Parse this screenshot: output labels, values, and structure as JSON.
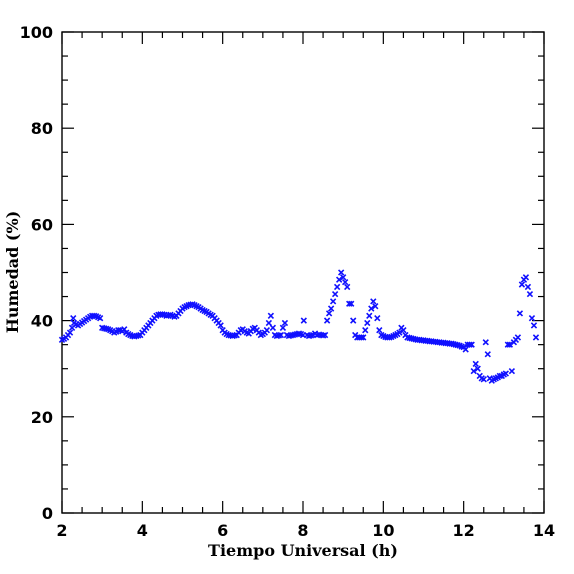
{
  "chart_data": {
    "type": "scatter",
    "xlabel": "Tiempo Universal (h)",
    "ylabel": "Humedad (%)",
    "xlim": [
      2,
      14
    ],
    "ylim": [
      0,
      100
    ],
    "x_ticks": [
      "2",
      "4",
      "6",
      "8",
      "10",
      "12",
      "14"
    ],
    "y_ticks": [
      "0",
      "20",
      "40",
      "60",
      "80",
      "100"
    ],
    "marker": "x",
    "marker_color": "#1010ff",
    "series": [
      {
        "points": [
          [
            2.0,
            36.0
          ],
          [
            2.05,
            36.2
          ],
          [
            2.1,
            36.5
          ],
          [
            2.15,
            37.0
          ],
          [
            2.2,
            37.5
          ],
          [
            2.25,
            38.5
          ],
          [
            2.28,
            40.5
          ],
          [
            2.3,
            39.5
          ],
          [
            2.35,
            39.2
          ],
          [
            2.4,
            39.0
          ],
          [
            2.45,
            39.3
          ],
          [
            2.5,
            39.6
          ],
          [
            2.55,
            39.9
          ],
          [
            2.6,
            40.2
          ],
          [
            2.65,
            40.5
          ],
          [
            2.7,
            40.8
          ],
          [
            2.75,
            41.0
          ],
          [
            2.8,
            41.0
          ],
          [
            2.85,
            40.9
          ],
          [
            2.9,
            40.7
          ],
          [
            2.95,
            40.5
          ],
          [
            3.0,
            38.5
          ],
          [
            3.05,
            38.4
          ],
          [
            3.1,
            38.3
          ],
          [
            3.15,
            38.2
          ],
          [
            3.2,
            38.0
          ],
          [
            3.25,
            37.8
          ],
          [
            3.3,
            37.5
          ],
          [
            3.35,
            37.7
          ],
          [
            3.4,
            38.0
          ],
          [
            3.45,
            38.0
          ],
          [
            3.5,
            37.8
          ],
          [
            3.55,
            38.2
          ],
          [
            3.6,
            37.5
          ],
          [
            3.65,
            37.2
          ],
          [
            3.7,
            37.0
          ],
          [
            3.75,
            36.8
          ],
          [
            3.8,
            36.7
          ],
          [
            3.85,
            36.8
          ],
          [
            3.9,
            36.9
          ],
          [
            3.95,
            37.0
          ],
          [
            4.0,
            37.5
          ],
          [
            4.05,
            38.0
          ],
          [
            4.1,
            38.5
          ],
          [
            4.15,
            39.0
          ],
          [
            4.2,
            39.5
          ],
          [
            4.25,
            40.0
          ],
          [
            4.3,
            40.5
          ],
          [
            4.35,
            41.0
          ],
          [
            4.4,
            41.2
          ],
          [
            4.45,
            41.3
          ],
          [
            4.5,
            41.3
          ],
          [
            4.55,
            41.2
          ],
          [
            4.6,
            41.0
          ],
          [
            4.65,
            41.1
          ],
          [
            4.7,
            41.2
          ],
          [
            4.75,
            41.0
          ],
          [
            4.8,
            40.8
          ],
          [
            4.85,
            41.0
          ],
          [
            4.9,
            41.5
          ],
          [
            4.95,
            42.0
          ],
          [
            5.0,
            42.5
          ],
          [
            5.05,
            42.8
          ],
          [
            5.1,
            43.0
          ],
          [
            5.15,
            43.2
          ],
          [
            5.2,
            43.3
          ],
          [
            5.25,
            43.4
          ],
          [
            5.3,
            43.2
          ],
          [
            5.35,
            43.0
          ],
          [
            5.4,
            42.8
          ],
          [
            5.45,
            42.5
          ],
          [
            5.5,
            42.2
          ],
          [
            5.55,
            42.0
          ],
          [
            5.6,
            41.8
          ],
          [
            5.65,
            41.5
          ],
          [
            5.7,
            41.2
          ],
          [
            5.75,
            41.0
          ],
          [
            5.8,
            40.5
          ],
          [
            5.85,
            40.0
          ],
          [
            5.9,
            39.5
          ],
          [
            5.95,
            39.0
          ],
          [
            6.0,
            38.0
          ],
          [
            6.05,
            37.5
          ],
          [
            6.1,
            37.2
          ],
          [
            6.15,
            37.0
          ],
          [
            6.2,
            36.9
          ],
          [
            6.25,
            36.8
          ],
          [
            6.3,
            36.9
          ],
          [
            6.35,
            37.0
          ],
          [
            6.4,
            37.5
          ],
          [
            6.45,
            38.0
          ],
          [
            6.5,
            38.2
          ],
          [
            6.55,
            37.8
          ],
          [
            6.6,
            37.5
          ],
          [
            6.65,
            37.3
          ],
          [
            6.7,
            37.8
          ],
          [
            6.75,
            38.3
          ],
          [
            6.8,
            38.5
          ],
          [
            6.85,
            38.0
          ],
          [
            6.9,
            37.5
          ],
          [
            6.95,
            37.0
          ],
          [
            7.0,
            37.2
          ],
          [
            7.05,
            37.5
          ],
          [
            7.1,
            38.0
          ],
          [
            7.15,
            39.5
          ],
          [
            7.2,
            41.0
          ],
          [
            7.25,
            38.5
          ],
          [
            7.3,
            37.0
          ],
          [
            7.35,
            36.8
          ],
          [
            7.4,
            36.9
          ],
          [
            7.45,
            37.0
          ],
          [
            7.5,
            38.5
          ],
          [
            7.55,
            39.5
          ],
          [
            7.6,
            37.0
          ],
          [
            7.65,
            36.8
          ],
          [
            7.7,
            36.9
          ],
          [
            7.75,
            37.0
          ],
          [
            7.8,
            37.1
          ],
          [
            7.85,
            37.2
          ],
          [
            7.9,
            37.3
          ],
          [
            7.95,
            37.2
          ],
          [
            8.0,
            37.0
          ],
          [
            8.02,
            40.0
          ],
          [
            8.1,
            37.0
          ],
          [
            8.15,
            36.8
          ],
          [
            8.2,
            36.9
          ],
          [
            8.25,
            37.0
          ],
          [
            8.3,
            37.3
          ],
          [
            8.35,
            37.0
          ],
          [
            8.4,
            37.1
          ],
          [
            8.45,
            37.0
          ],
          [
            8.5,
            36.9
          ],
          [
            8.55,
            37.0
          ],
          [
            8.6,
            40.0
          ],
          [
            8.65,
            41.5
          ],
          [
            8.7,
            42.5
          ],
          [
            8.75,
            44.0
          ],
          [
            8.8,
            45.5
          ],
          [
            8.85,
            47.0
          ],
          [
            8.9,
            48.5
          ],
          [
            8.95,
            50.0
          ],
          [
            9.0,
            49.0
          ],
          [
            9.05,
            48.0
          ],
          [
            9.1,
            47.0
          ],
          [
            9.15,
            43.5
          ],
          [
            9.2,
            43.5
          ],
          [
            9.25,
            40.0
          ],
          [
            9.3,
            37.0
          ],
          [
            9.35,
            36.5
          ],
          [
            9.4,
            36.5
          ],
          [
            9.45,
            36.5
          ],
          [
            9.5,
            36.5
          ],
          [
            9.55,
            38.0
          ],
          [
            9.6,
            39.5
          ],
          [
            9.65,
            41.0
          ],
          [
            9.7,
            42.5
          ],
          [
            9.75,
            44.0
          ],
          [
            9.8,
            43.0
          ],
          [
            9.85,
            40.5
          ],
          [
            9.9,
            38.0
          ],
          [
            9.95,
            37.0
          ],
          [
            10.0,
            36.8
          ],
          [
            10.05,
            36.6
          ],
          [
            10.1,
            36.5
          ],
          [
            10.15,
            36.5
          ],
          [
            10.2,
            36.6
          ],
          [
            10.25,
            36.8
          ],
          [
            10.3,
            37.0
          ],
          [
            10.35,
            37.2
          ],
          [
            10.4,
            37.5
          ],
          [
            10.45,
            38.5
          ],
          [
            10.5,
            38.0
          ],
          [
            10.55,
            37.0
          ],
          [
            10.6,
            36.5
          ],
          [
            10.65,
            36.4
          ],
          [
            10.7,
            36.3
          ],
          [
            10.75,
            36.2
          ],
          [
            10.8,
            36.1
          ],
          [
            10.85,
            36.0
          ],
          [
            10.9,
            36.0
          ],
          [
            10.95,
            35.9
          ],
          [
            11.0,
            35.9
          ],
          [
            11.05,
            35.8
          ],
          [
            11.1,
            35.8
          ],
          [
            11.15,
            35.7
          ],
          [
            11.2,
            35.7
          ],
          [
            11.25,
            35.6
          ],
          [
            11.3,
            35.6
          ],
          [
            11.35,
            35.5
          ],
          [
            11.4,
            35.5
          ],
          [
            11.45,
            35.4
          ],
          [
            11.5,
            35.4
          ],
          [
            11.55,
            35.3
          ],
          [
            11.6,
            35.3
          ],
          [
            11.65,
            35.2
          ],
          [
            11.7,
            35.2
          ],
          [
            11.75,
            35.1
          ],
          [
            11.8,
            35.0
          ],
          [
            11.85,
            34.9
          ],
          [
            11.9,
            34.8
          ],
          [
            11.95,
            34.6
          ],
          [
            12.0,
            34.5
          ],
          [
            12.05,
            34.0
          ],
          [
            12.1,
            35.0
          ],
          [
            12.15,
            35.0
          ],
          [
            12.2,
            35.0
          ],
          [
            12.25,
            29.5
          ],
          [
            12.3,
            31.0
          ],
          [
            12.35,
            30.0
          ],
          [
            12.4,
            28.5
          ],
          [
            12.45,
            28.0
          ],
          [
            12.5,
            27.8
          ],
          [
            12.55,
            35.5
          ],
          [
            12.6,
            33.0
          ],
          [
            12.65,
            28.0
          ],
          [
            12.7,
            27.5
          ],
          [
            12.75,
            27.8
          ],
          [
            12.8,
            28.0
          ],
          [
            12.85,
            28.2
          ],
          [
            12.9,
            28.5
          ],
          [
            12.95,
            28.5
          ],
          [
            13.0,
            28.8
          ],
          [
            13.05,
            29.0
          ],
          [
            13.1,
            35.0
          ],
          [
            13.15,
            35.0
          ],
          [
            13.2,
            29.5
          ],
          [
            13.25,
            35.5
          ],
          [
            13.3,
            36.0
          ],
          [
            13.35,
            36.5
          ],
          [
            13.4,
            41.5
          ],
          [
            13.45,
            47.5
          ],
          [
            13.5,
            48.5
          ],
          [
            13.55,
            49.0
          ],
          [
            13.6,
            47.0
          ],
          [
            13.65,
            45.5
          ],
          [
            13.7,
            40.5
          ],
          [
            13.75,
            39.0
          ],
          [
            13.8,
            36.5
          ]
        ]
      }
    ]
  }
}
